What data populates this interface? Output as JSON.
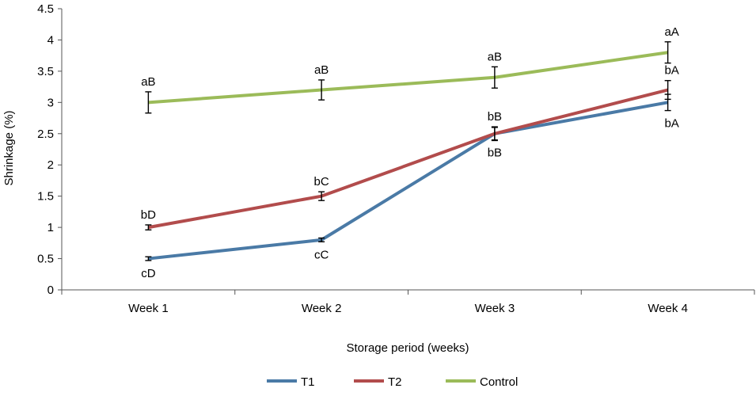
{
  "chart_data": {
    "type": "line",
    "title": "",
    "xlabel": "Storage period (weeks)",
    "ylabel": "Shrinkage (%)",
    "ylim": [
      0,
      4.5
    ],
    "yticks": [
      "0",
      "0.5",
      "1",
      "1.5",
      "2",
      "2.5",
      "3",
      "3.5",
      "4",
      "4.5"
    ],
    "categories": [
      "Week 1",
      "Week 2",
      "Week 3",
      "Week 4"
    ],
    "grid": false,
    "legend_position": "bottom",
    "series": [
      {
        "name": "T1",
        "color": "#4a7aa6",
        "values": [
          0.5,
          0.8,
          2.5,
          3.0
        ],
        "errors": [
          0.03,
          0.03,
          0.1,
          0.13
        ],
        "labels": [
          "cD",
          "cC",
          "bB",
          "bA"
        ],
        "label_side": [
          "below",
          "below",
          "below",
          "below"
        ]
      },
      {
        "name": "T2",
        "color": "#b24c4c",
        "values": [
          1.0,
          1.5,
          2.5,
          3.2
        ],
        "errors": [
          0.04,
          0.07,
          0.11,
          0.15
        ],
        "labels": [
          "bD",
          "bC",
          "bB",
          "bA"
        ],
        "label_side": [
          "above",
          "above",
          "above",
          "above"
        ]
      },
      {
        "name": "Control",
        "color": "#9bbb59",
        "values": [
          3.0,
          3.2,
          3.4,
          3.8
        ],
        "errors": [
          0.17,
          0.16,
          0.17,
          0.17
        ],
        "labels": [
          "aB",
          "aB",
          "aB",
          "aA"
        ],
        "label_side": [
          "above",
          "above",
          "above",
          "above"
        ]
      }
    ]
  }
}
